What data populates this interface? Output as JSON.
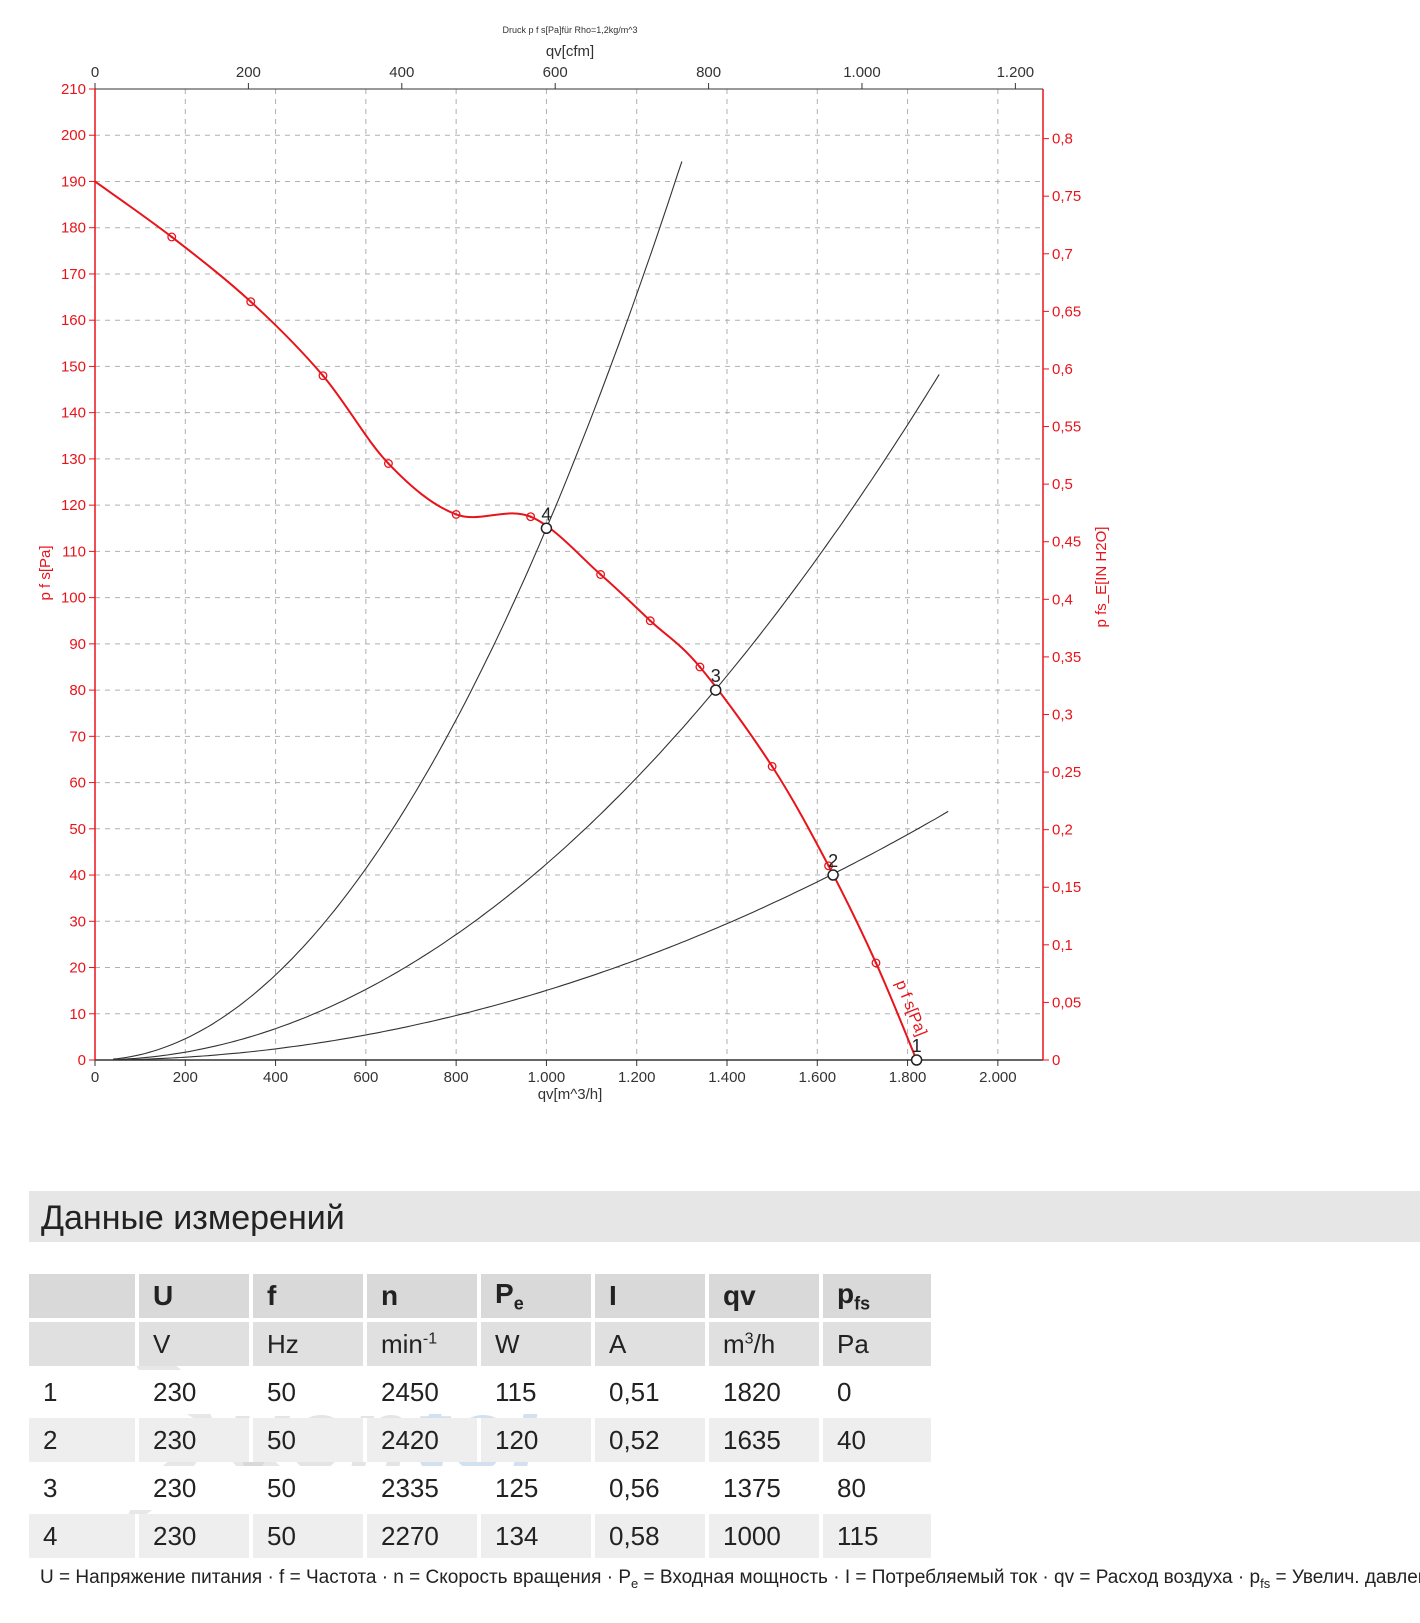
{
  "chart_data": {
    "type": "line",
    "title": "Druck p f s[Pa]für Rho=1,2kg/m^3",
    "xlabel": "qv[m^3/h]",
    "x2label": "qv[cfm]",
    "ylabel": "p f s[Pa]",
    "y2label": "p fs_E[IN H2O]",
    "series_label": "p f s[Pa]",
    "xlim": [
      0,
      2100
    ],
    "ylim": [
      0,
      210
    ],
    "x_ticks": [
      0,
      200,
      400,
      600,
      800,
      1000,
      1200,
      1400,
      1600,
      1800,
      2000
    ],
    "x_tick_labels": [
      "0",
      "200",
      "400",
      "600",
      "800",
      "1.000",
      "1.200",
      "1.400",
      "1.600",
      "1.800",
      "2.000"
    ],
    "y_ticks": [
      0,
      10,
      20,
      30,
      40,
      50,
      60,
      70,
      80,
      90,
      100,
      110,
      120,
      130,
      140,
      150,
      160,
      170,
      180,
      190,
      200,
      210
    ],
    "x2_ticks": [
      0,
      200,
      400,
      600,
      800,
      1000,
      1200
    ],
    "x2_tick_labels": [
      "0",
      "200",
      "400",
      "600",
      "800",
      "1.000",
      "1.200"
    ],
    "y2_ticks": [
      0,
      0.05,
      0.1,
      0.15,
      0.2,
      0.25,
      0.3,
      0.35,
      0.4,
      0.45,
      0.5,
      0.55,
      0.6,
      0.65,
      0.7,
      0.75,
      0.8
    ],
    "y2_tick_labels": [
      "0",
      "0,05",
      "0,1",
      "0,15",
      "0,2",
      "0,25",
      "0,3",
      "0,35",
      "0,4",
      "0,45",
      "0,5",
      "0,55",
      "0,6",
      "0,65",
      "0,7",
      "0,75",
      "0,8"
    ],
    "grid": true,
    "fan_curve": {
      "x": [
        0,
        170,
        345,
        505,
        650,
        800,
        965,
        1120,
        1230,
        1340,
        1500,
        1625,
        1730,
        1820
      ],
      "y": [
        190,
        178,
        164,
        148,
        129,
        118,
        117.5,
        105,
        95,
        85,
        63.5,
        42,
        21,
        0
      ]
    },
    "system_curves": [
      {
        "k": 0.000115,
        "x_end": 1300
      },
      {
        "k": 4.24e-05,
        "x_end": 1870
      },
      {
        "k": 1.505e-05,
        "x_end": 1890
      }
    ],
    "operating_points": [
      {
        "label": "1",
        "x": 1820,
        "y": 0
      },
      {
        "label": "2",
        "x": 1635,
        "y": 40
      },
      {
        "label": "3",
        "x": 1375,
        "y": 80
      },
      {
        "label": "4",
        "x": 1000,
        "y": 115
      }
    ],
    "colors": {
      "fan": "#e8141b",
      "system": "#333333",
      "axis_red": "#e8141b",
      "grid": "#b0b0b0"
    }
  },
  "section_title": "Данные измерений",
  "table": {
    "headers": [
      {
        "main": "",
        "sub": ""
      },
      {
        "main": "U",
        "sub": ""
      },
      {
        "main": "f",
        "sub": ""
      },
      {
        "main": "n",
        "sub": ""
      },
      {
        "main": "P",
        "sub": "e"
      },
      {
        "main": "I",
        "sub": ""
      },
      {
        "main": "qv",
        "sub": ""
      },
      {
        "main": "p",
        "sub": "fs"
      }
    ],
    "units": [
      {
        "main": "",
        "sup": ""
      },
      {
        "main": "V",
        "sup": ""
      },
      {
        "main": "Hz",
        "sup": ""
      },
      {
        "main": "min",
        "sup": "-1"
      },
      {
        "main": "W",
        "sup": ""
      },
      {
        "main": "A",
        "sup": ""
      },
      {
        "main": "m",
        "sup": "3",
        "tail": "/h"
      },
      {
        "main": "Pa",
        "sup": ""
      }
    ],
    "rows": [
      [
        "1",
        "230",
        "50",
        "2450",
        "115",
        "0,51",
        "1820",
        "0"
      ],
      [
        "2",
        "230",
        "50",
        "2420",
        "120",
        "0,52",
        "1635",
        "40"
      ],
      [
        "3",
        "230",
        "50",
        "2335",
        "125",
        "0,56",
        "1375",
        "80"
      ],
      [
        "4",
        "230",
        "50",
        "2270",
        "134",
        "0,58",
        "1000",
        "115"
      ]
    ]
  },
  "watermark": {
    "main": "ven",
    "accent": "tel"
  },
  "legend": {
    "parts": [
      {
        "t": "U = Напряжение питания · f = Частота · n = Скорость вращения · P"
      },
      {
        "sub": "e"
      },
      {
        "t": " = Входная мощность · I = Потребляемый ток · qv = Расход воздуха · p"
      },
      {
        "sub": "fs"
      },
      {
        "t": " = Увелич. давления"
      }
    ]
  }
}
